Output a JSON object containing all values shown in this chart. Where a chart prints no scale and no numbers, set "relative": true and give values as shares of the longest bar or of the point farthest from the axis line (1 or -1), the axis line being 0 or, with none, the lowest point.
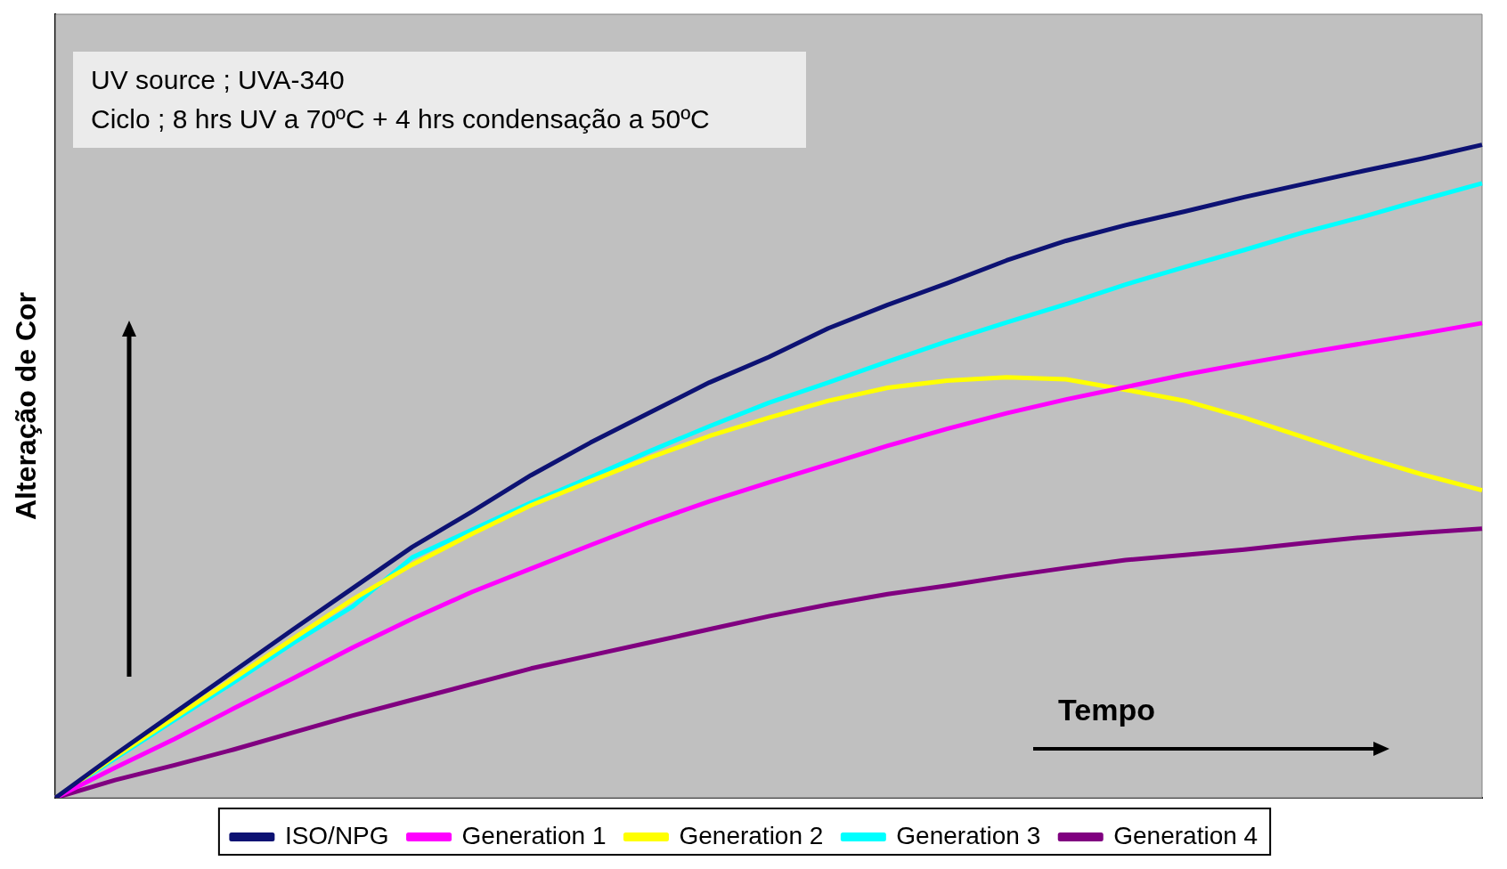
{
  "chart_data": {
    "type": "line",
    "relative": true,
    "xlabel": "Tempo",
    "ylabel": "Alteração de Cor",
    "annotations": [
      "UV source ; UVA-340",
      "Ciclo ; 8 hrs UV a 70ºC + 4 hrs condensação a 50ºC"
    ],
    "categories": [
      null,
      null,
      null,
      null,
      null,
      null,
      null,
      null,
      null,
      null,
      null,
      null,
      null,
      null,
      null,
      null,
      null,
      null,
      null,
      null,
      null,
      null,
      null,
      null,
      null
    ],
    "legend": "bottom",
    "grid": false,
    "marker": "none",
    "line_style": "solid",
    "series": [
      {
        "name": "ISO/NPG",
        "color": "#0d1273",
        "values": [
          0,
          0.066,
          0.13,
          0.194,
          0.258,
          0.321,
          0.384,
          0.438,
          0.494,
          0.544,
          0.59,
          0.636,
          0.675,
          0.719,
          0.755,
          0.788,
          0.823,
          0.853,
          0.877,
          0.898,
          0.92,
          0.94,
          0.96,
          0.979,
          1
        ]
      },
      {
        "name": "Generation 1",
        "color": "#ff00ff",
        "values": [
          0,
          0.046,
          0.09,
          0.137,
          0.183,
          0.23,
          0.274,
          0.315,
          0.351,
          0.387,
          0.422,
          0.454,
          0.483,
          0.511,
          0.539,
          0.565,
          0.589,
          0.61,
          0.629,
          0.648,
          0.665,
          0.681,
          0.696,
          0.711,
          0.727
        ]
      },
      {
        "name": "Generation 2",
        "color": "#ffff00",
        "values": [
          0,
          0.063,
          0.123,
          0.183,
          0.244,
          0.304,
          0.357,
          0.404,
          0.448,
          0.485,
          0.521,
          0.554,
          0.582,
          0.608,
          0.628,
          0.639,
          0.644,
          0.641,
          0.625,
          0.608,
          0.582,
          0.552,
          0.522,
          0.495,
          0.471
        ]
      },
      {
        "name": "Generation 3",
        "color": "#00ffff",
        "values": [
          0,
          0.06,
          0.119,
          0.177,
          0.237,
          0.293,
          0.368,
          0.41,
          0.452,
          0.491,
          0.531,
          0.569,
          0.605,
          0.636,
          0.668,
          0.699,
          0.728,
          0.756,
          0.786,
          0.813,
          0.839,
          0.866,
          0.89,
          0.916,
          0.941
        ]
      },
      {
        "name": "Generation 4",
        "color": "#800080",
        "values": [
          0,
          0.027,
          0.05,
          0.074,
          0.1,
          0.126,
          0.15,
          0.174,
          0.198,
          0.218,
          0.238,
          0.258,
          0.278,
          0.296,
          0.312,
          0.325,
          0.339,
          0.352,
          0.364,
          0.372,
          0.38,
          0.39,
          0.399,
          0.406,
          0.412
        ]
      }
    ]
  }
}
